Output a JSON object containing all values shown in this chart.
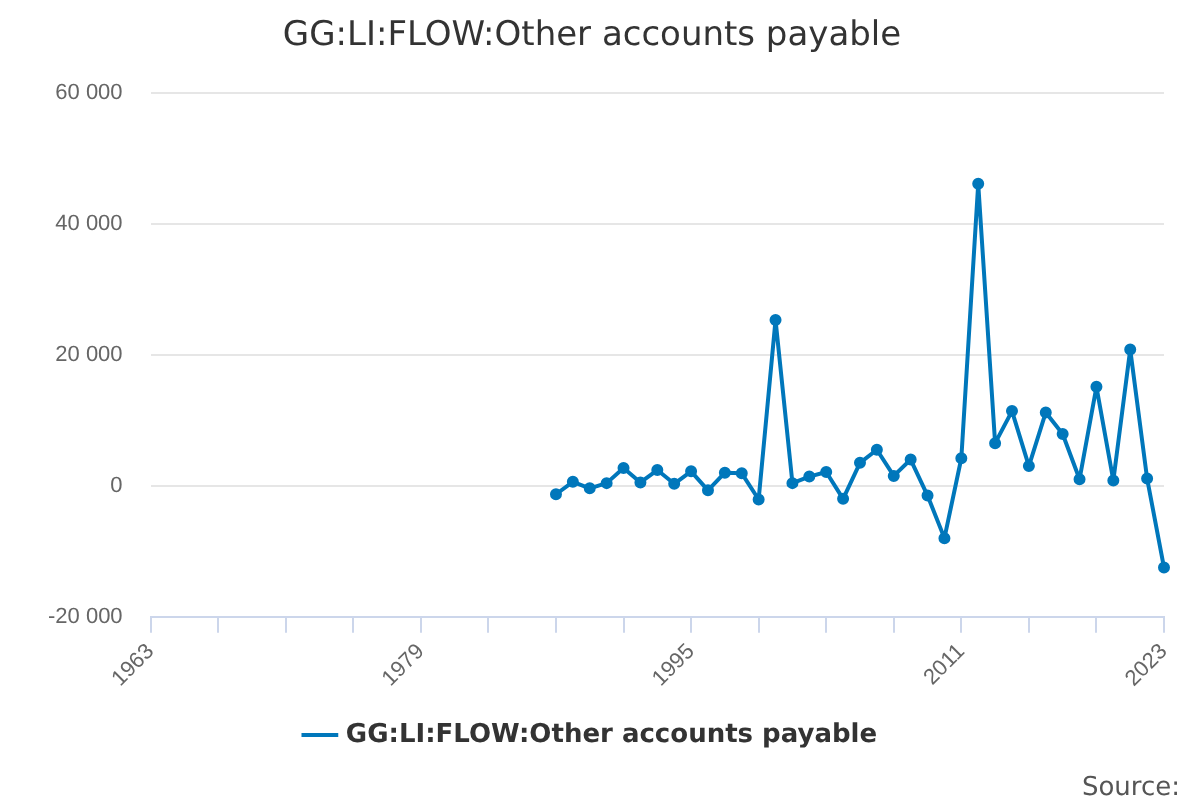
{
  "chart_data": {
    "type": "line",
    "title": "GG:LI:FLOW:Other accounts payable",
    "x": [
      1987,
      1988,
      1989,
      1990,
      1991,
      1992,
      1993,
      1994,
      1995,
      1996,
      1997,
      1998,
      1999,
      2000,
      2001,
      2002,
      2003,
      2004,
      2005,
      2006,
      2007,
      2008,
      2009,
      2010,
      2011,
      2012,
      2013,
      2014,
      2015,
      2016,
      2017,
      2018,
      2019,
      2020,
      2021,
      2022,
      2023
    ],
    "series": [
      {
        "name": "GG:LI:FLOW:Other accounts payable",
        "color": "#0077bb",
        "values": [
          -1300,
          600,
          -400,
          400,
          2700,
          500,
          2400,
          300,
          2200,
          -700,
          2000,
          1900,
          -2100,
          25300,
          400,
          1400,
          2100,
          -2000,
          3500,
          5500,
          1500,
          4000,
          -1500,
          -8000,
          4200,
          46100,
          6500,
          11400,
          3000,
          11200,
          7900,
          1000,
          15100,
          800,
          20800,
          1100,
          -12500
        ]
      }
    ],
    "xlim": [
      1963,
      2023
    ],
    "xticks": [
      1963,
      {
        "value": 1967,
        "label": null
      },
      {
        "value": 1971,
        "label": null
      },
      {
        "value": 1975,
        "label": null
      },
      1979,
      {
        "value": 1983,
        "label": null
      },
      {
        "value": 1987,
        "label": null
      },
      {
        "value": 1991,
        "label": null
      },
      1995,
      {
        "value": 1999,
        "label": null
      },
      {
        "value": 2003,
        "label": null
      },
      {
        "value": 2007,
        "label": null
      },
      2011,
      {
        "value": 2015,
        "label": null
      },
      {
        "value": 2019,
        "label": null
      },
      2023
    ],
    "ylim": [
      -20000,
      60000
    ],
    "yticks": [
      {
        "value": -20000,
        "label": "-20 000"
      },
      {
        "value": 0,
        "label": "0"
      },
      {
        "value": 20000,
        "label": "20 000"
      },
      {
        "value": 40000,
        "label": "40 000"
      },
      {
        "value": 60000,
        "label": "60 000"
      }
    ],
    "grid": "y",
    "legend": "bottom",
    "marker": "circle",
    "line_style": "solid",
    "annotations": [
      "Source:"
    ]
  }
}
